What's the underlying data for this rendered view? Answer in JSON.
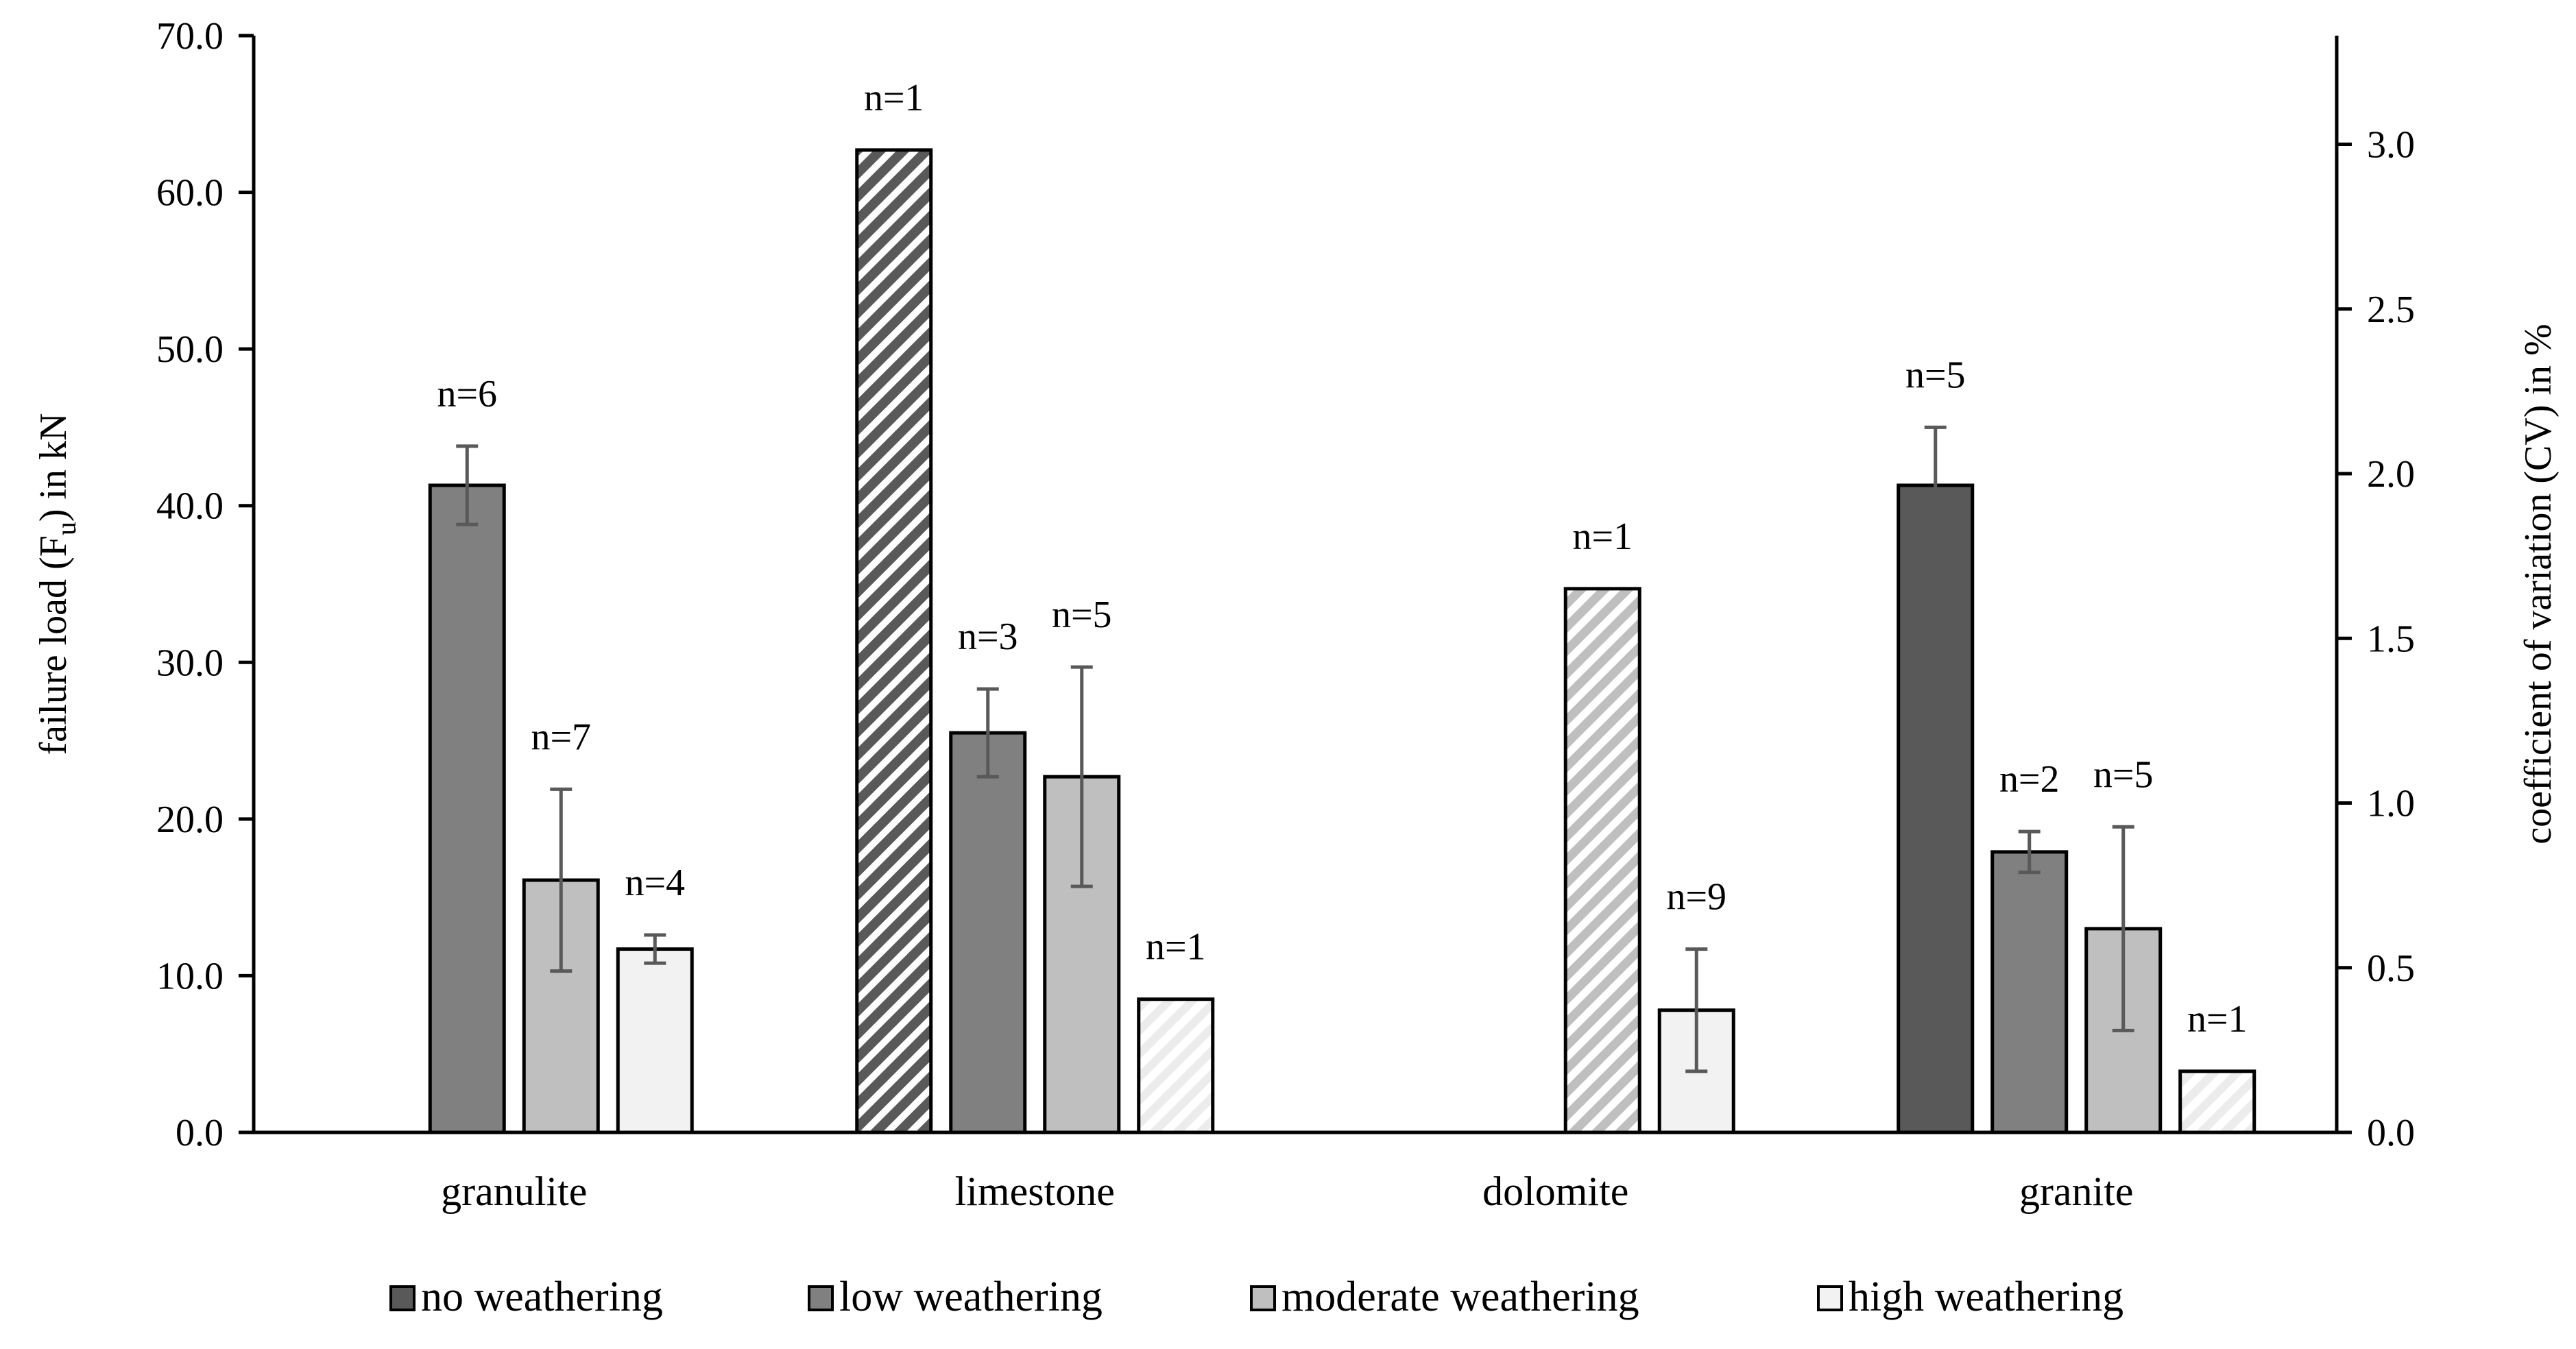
{
  "chart_data": {
    "type": "bar",
    "categories": [
      "granulite",
      "limestone",
      "dolomite",
      "granite"
    ],
    "ylabel_left": "failure load (F",
    "ylabel_left_sub": "u",
    "ylabel_left_end": ") in kN",
    "ylabel_right": "coefficient of variation (CV) in %",
    "ylim_left": [
      0,
      70
    ],
    "ylim_right": [
      0,
      3.33
    ],
    "left_ticks": [
      "0.0",
      "10.0",
      "20.0",
      "30.0",
      "40.0",
      "50.0",
      "60.0",
      "70.0"
    ],
    "left_tick_values": [
      0,
      10,
      20,
      30,
      40,
      50,
      60,
      70
    ],
    "right_ticks": [
      "0.0",
      "0.5",
      "1.0",
      "1.5",
      "2.0",
      "2.5",
      "3.0"
    ],
    "right_tick_values": [
      0,
      0.5,
      1.0,
      1.5,
      2.0,
      2.5,
      3.0
    ],
    "series": [
      {
        "name": "no weathering",
        "color": "#595959",
        "values": [
          null,
          62.7,
          null,
          41.3
        ],
        "errors": [
          null,
          null,
          null,
          3.7
        ],
        "counts": [
          null,
          "n=1",
          null,
          "n=5"
        ],
        "hatched": [
          false,
          true,
          false,
          false
        ]
      },
      {
        "name": "low weathering",
        "color": "#808080",
        "values": [
          41.3,
          25.5,
          null,
          17.9
        ],
        "errors": [
          2.5,
          2.8,
          null,
          1.3
        ],
        "counts": [
          "n=6",
          "n=3",
          null,
          "n=2"
        ],
        "hatched": [
          false,
          false,
          false,
          false
        ]
      },
      {
        "name": "moderate weathering",
        "color": "#bfbfbf",
        "values": [
          16.1,
          22.7,
          34.7,
          13.0
        ],
        "errors": [
          5.8,
          7.0,
          null,
          6.5
        ],
        "counts": [
          "n=7",
          "n=5",
          "n=1",
          "n=5"
        ],
        "hatched": [
          false,
          false,
          true,
          false
        ]
      },
      {
        "name": "high weathering",
        "color": "#f2f2f2",
        "values": [
          11.7,
          8.5,
          7.8,
          3.9
        ],
        "errors": [
          0.9,
          null,
          3.9,
          null
        ],
        "counts": [
          "n=4",
          "n=1",
          "n=9",
          "n=1"
        ],
        "hatched": [
          false,
          true,
          false,
          true
        ]
      }
    ],
    "legend_position": "bottom-center",
    "grid": false
  }
}
